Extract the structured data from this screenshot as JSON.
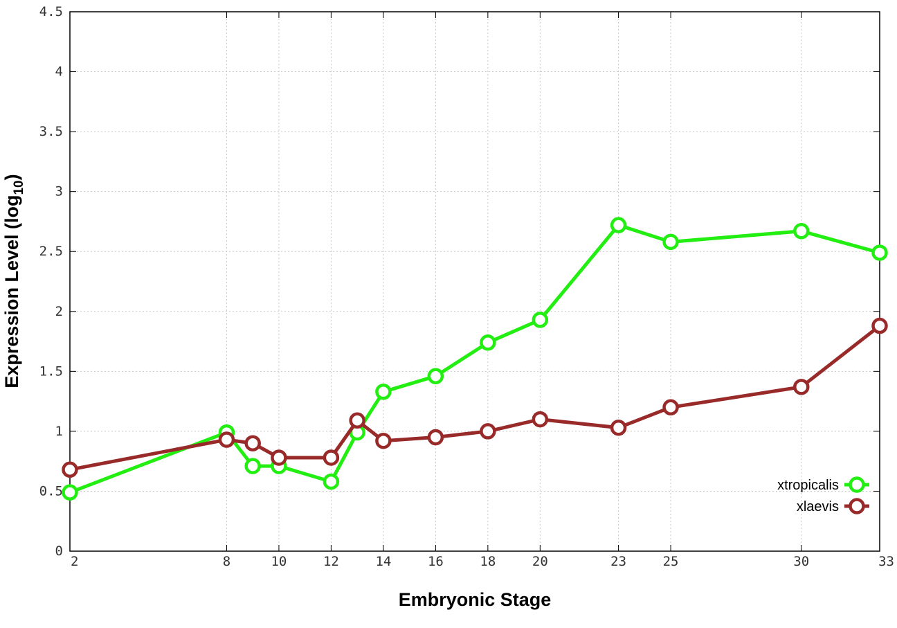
{
  "chart_data": {
    "type": "line",
    "xlabel": "Embryonic Stage",
    "ylabel_main": "Expression Level (log",
    "ylabel_sub": "10",
    "ylabel_close": ")",
    "xlim": [
      2,
      33
    ],
    "ylim": [
      0,
      4.5
    ],
    "xticks": [
      2,
      8,
      10,
      12,
      14,
      16,
      18,
      20,
      23,
      25,
      30,
      33
    ],
    "xtick_labels": [
      "2",
      "8",
      "10",
      "12",
      "14",
      "16",
      "18",
      "20",
      "23",
      "25",
      "30",
      "33"
    ],
    "yticks": [
      0,
      0.5,
      1,
      1.5,
      2,
      2.5,
      3,
      3.5,
      4,
      4.5
    ],
    "ytick_labels": [
      "0",
      "0.5",
      "1",
      "1.5",
      "2",
      "2.5",
      "3",
      "3.5",
      "4",
      "4.5"
    ],
    "grid": true,
    "legend_position": "bottom-right",
    "series": [
      {
        "name": "xtropicalis",
        "color": "#22ee11",
        "x": [
          2,
          8,
          9,
          10,
          12,
          13,
          14,
          16,
          18,
          20,
          23,
          25,
          30,
          33
        ],
        "y": [
          0.49,
          0.99,
          0.71,
          0.71,
          0.58,
          0.99,
          1.33,
          1.46,
          1.74,
          1.93,
          2.72,
          2.58,
          2.67,
          2.49
        ]
      },
      {
        "name": "xlaevis",
        "color": "#992a2a",
        "x": [
          2,
          8,
          9,
          10,
          12,
          13,
          14,
          16,
          18,
          20,
          23,
          25,
          30,
          33
        ],
        "y": [
          0.68,
          0.93,
          0.9,
          0.78,
          0.78,
          1.09,
          0.92,
          0.95,
          1.0,
          1.1,
          1.03,
          1.2,
          1.37,
          1.88
        ]
      }
    ]
  }
}
